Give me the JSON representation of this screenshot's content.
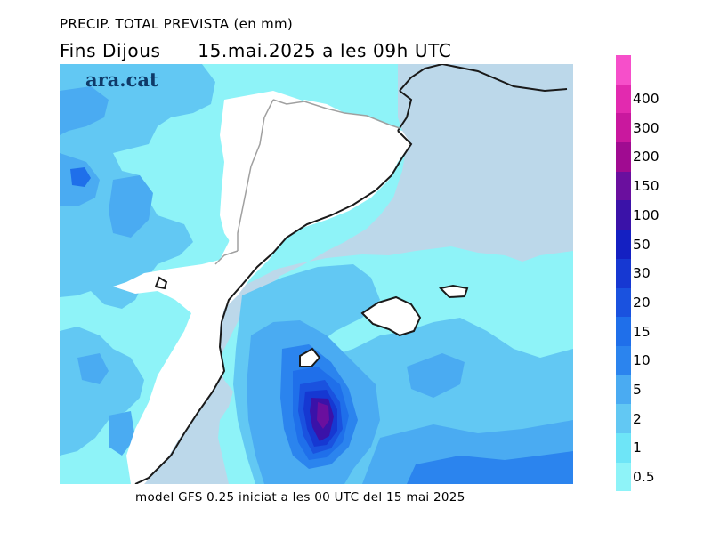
{
  "title": "PRECIP. TOTAL PREVISTA (en mm)",
  "subtitle": "Fins Dijous      15.mai.2025 a les 09h UTC",
  "footer": "model GFS 0.25 iniciat a les 00 UTC del 15 mai 2025",
  "brand": "ara.cat",
  "colors": {
    "land": "#ffffff",
    "sea_no_precip": "#bcd8ea",
    "coast": "#1a1a1a",
    "border": "#a0a0a0"
  },
  "legend": {
    "unit": "mm",
    "levels": [
      {
        "label": "0.5",
        "color": "#8ef3f8"
      },
      {
        "label": "1",
        "color": "#6ee5f7"
      },
      {
        "label": "2",
        "color": "#62c8f3"
      },
      {
        "label": "5",
        "color": "#4aabf2"
      },
      {
        "label": "10",
        "color": "#2b84ee"
      },
      {
        "label": "15",
        "color": "#1f6fea"
      },
      {
        "label": "20",
        "color": "#1a52df"
      },
      {
        "label": "30",
        "color": "#1638d2"
      },
      {
        "label": "50",
        "color": "#1420c2"
      },
      {
        "label": "100",
        "color": "#3a12a8"
      },
      {
        "label": "150",
        "color": "#6a0f9e"
      },
      {
        "label": "200",
        "color": "#a00b91"
      },
      {
        "label": "300",
        "color": "#c9189e"
      },
      {
        "label": "400",
        "color": "#e22aaf"
      },
      {
        "label": "",
        "color": "#f64fca"
      }
    ]
  }
}
